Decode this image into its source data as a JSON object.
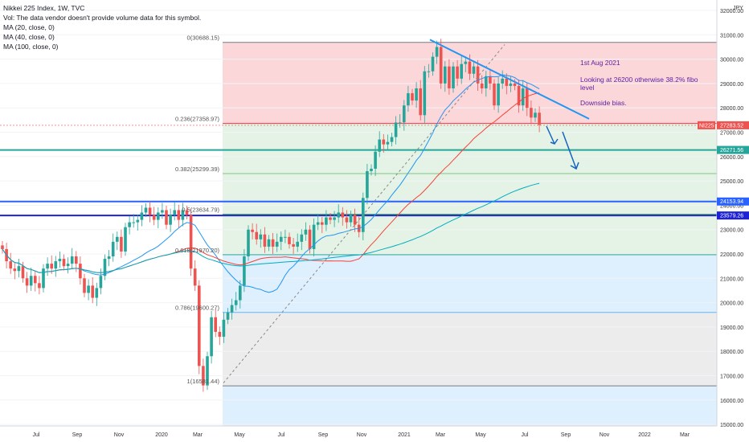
{
  "header": {
    "title": "Nikkei 225 Index, 1W, TVC",
    "volume_note": "Vol: The data vendor doesn't provide volume data for this symbol.",
    "ma_labels": [
      "MA (20, close, 0)",
      "MA (40, close, 0)",
      "MA (100, close, 0)"
    ]
  },
  "currency": "JPY",
  "annotation": {
    "date": "1st Aug 2021",
    "line1": "Looking at 26200 otherwise 38.2% fibo",
    "line2": "level",
    "bias": "Downside bias."
  },
  "fib_labels": [
    "0(30688.15)",
    "0.236(27358.97)",
    "0.382(25299.39)",
    "0.5(23634.79)",
    "0.618(21970.20)",
    "0.786(19600.27)",
    "1(16581.44)"
  ],
  "price_badges": [
    {
      "text": "NI225",
      "value": "27283.52",
      "color": "#ef5350"
    },
    {
      "text": "",
      "value": "26271.56",
      "color": "#26a69a"
    },
    {
      "text": "",
      "value": "24153.94",
      "color": "#2962ff"
    },
    {
      "text": "",
      "value": "23579.26",
      "color": "#1e22d6"
    }
  ],
  "chart_data": {
    "type": "candlestick",
    "title": "Nikkei 225 Index, 1W, TVC",
    "y_ticks": [
      "32000.00",
      "31000.00",
      "30000.00",
      "29000.00",
      "28000.00",
      "27000.00",
      "26000.00",
      "25000.00",
      "24000.00",
      "23000.00",
      "22000.00",
      "21000.00",
      "20000.00",
      "19000.00",
      "18000.00",
      "17000.00",
      "16000.00",
      "15000.00"
    ],
    "x_ticks": [
      "Jul",
      "Sep",
      "Nov",
      "2020",
      "Mar",
      "May",
      "Jul",
      "Sep",
      "Nov",
      "2021",
      "Mar",
      "May",
      "Jul",
      "Sep",
      "Nov",
      "2022",
      "Mar"
    ],
    "fib_levels": [
      30688.15,
      27358.97,
      25299.39,
      23634.79,
      21970.2,
      19600.27,
      16581.44
    ],
    "horizontal_lines": [
      26271.56,
      24153.94,
      23579.26
    ],
    "last_price": 27283.52,
    "closes": [
      22200,
      21700,
      21400,
      21300,
      21500,
      21000,
      20700,
      21100,
      20800,
      20600,
      21400,
      21600,
      21400,
      21700,
      21800,
      21500,
      21600,
      21900,
      21600,
      21000,
      20400,
      20700,
      20200,
      20600,
      21100,
      21800,
      21900,
      22500,
      22700,
      22100,
      23100,
      23300,
      23300,
      23400,
      23700,
      23900,
      23600,
      23400,
      23700,
      23800,
      23200,
      23600,
      23800,
      23400,
      23800,
      23600,
      21400,
      20700,
      17400,
      16600,
      17800,
      19400,
      18800,
      18600,
      19300,
      19600,
      19900,
      20100,
      20700,
      21900,
      23000,
      22900,
      22600,
      22800,
      22300,
      22600,
      22300,
      22500,
      22700,
      22700,
      22400,
      22300,
      22500,
      22800,
      23000,
      22200,
      23200,
      23300,
      23200,
      23500,
      23400,
      23500,
      23700,
      23500,
      23300,
      23600,
      23200,
      22900,
      24300,
      25400,
      25500,
      26200,
      26700,
      26500,
      26600,
      26800,
      27400,
      27400,
      28100,
      28600,
      28300,
      28800,
      27700,
      29500,
      29500,
      30100,
      30500,
      29000,
      29700,
      28800,
      29700,
      29200,
      29800,
      29900,
      29400,
      29700,
      29000,
      28800,
      29300,
      29000,
      28100,
      29000,
      29200,
      28900,
      29000,
      28900,
      28100,
      28800,
      28000,
      27600,
      27800,
      27300
    ]
  }
}
